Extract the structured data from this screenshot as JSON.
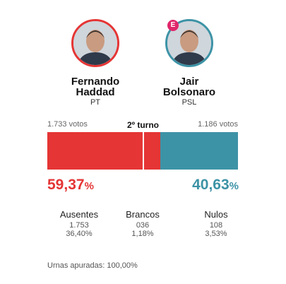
{
  "round": "2º turno",
  "candidates": [
    {
      "name": [
        "Fernando",
        "Haddad"
      ],
      "party": "PT",
      "votes": "1.733 votos",
      "color": "#e53535",
      "share": 59.37,
      "share_label": "59,37%"
    },
    {
      "name": [
        "Jair",
        "Bolsonaro"
      ],
      "party": "PSL",
      "votes": "1.186 votos",
      "color": "#3d93a6",
      "share": 40.63,
      "share_label": "40,63%",
      "badge": "E"
    }
  ],
  "stats": [
    {
      "label": "Ausentes",
      "count": "1.753",
      "percent": "36,40%"
    },
    {
      "label": "Brancos",
      "count": "036",
      "percent": "1,18%"
    },
    {
      "label": "Nulos",
      "count": "108",
      "percent": "3,53%"
    }
  ],
  "footer": "Urnas apuradas: 100,00%"
}
